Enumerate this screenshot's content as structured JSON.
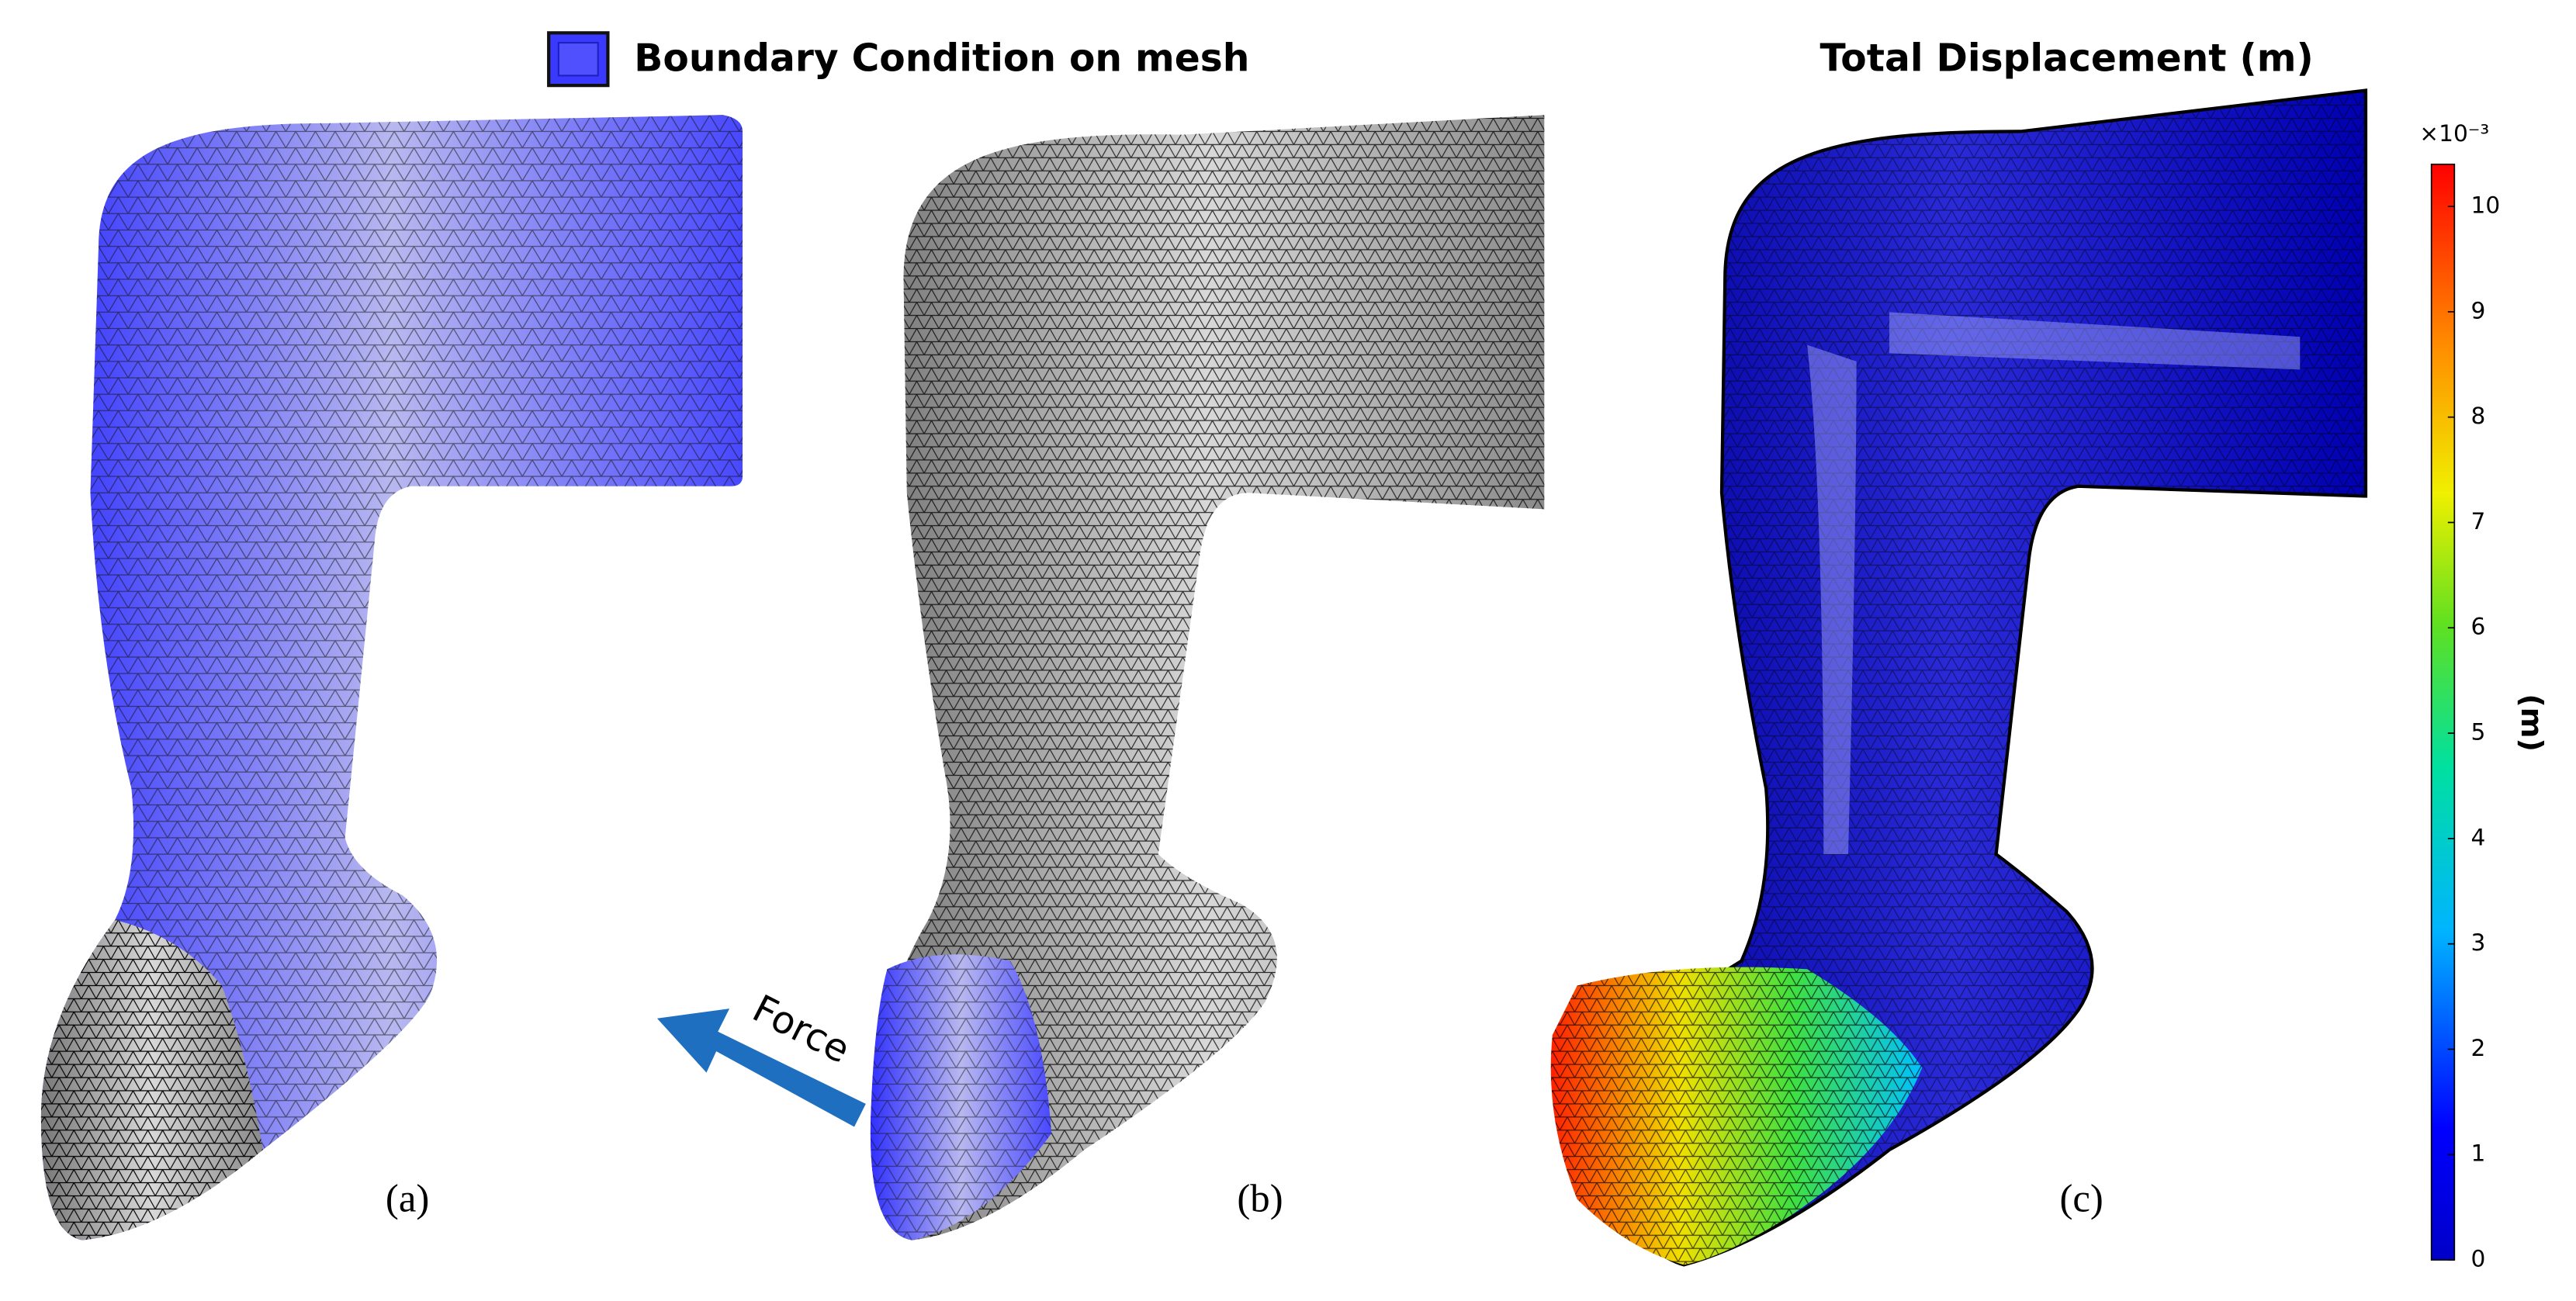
{
  "legend": {
    "label": "Boundary Condition on mesh"
  },
  "panels": [
    {
      "label": "(a)"
    },
    {
      "label": "(b)",
      "annotation": "Force"
    },
    {
      "label": "(c)",
      "title": "Total Displacement (m)"
    }
  ],
  "colorbar": {
    "label": "(m)",
    "multiplier": "×10⁻³",
    "lim": [
      0,
      10.4
    ],
    "ticks": [
      0,
      1,
      2,
      3,
      4,
      5,
      6,
      7,
      8,
      9,
      10
    ]
  }
}
